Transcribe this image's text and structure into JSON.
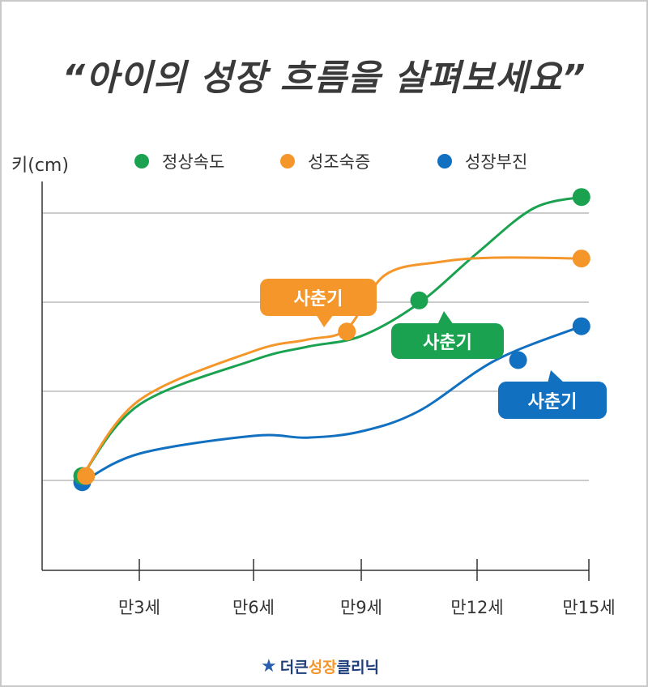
{
  "title": "“아이의 성장 흐름을 살펴보세요”",
  "chart_data": {
    "type": "line",
    "ylabel": "키(cm)",
    "xlabel": "",
    "categories": [
      "만3세",
      "만6세",
      "만9세",
      "만12세",
      "만15세"
    ],
    "legend_position": "top",
    "grid": true,
    "series": [
      {
        "name": "정상속도",
        "color": "#1aa250",
        "values": [
          {
            "age": 1.5,
            "height": 0.05
          },
          {
            "age": 3,
            "height": 0.85
          },
          {
            "age": 6,
            "height": 1.35
          },
          {
            "age": 7.5,
            "height": 1.5
          },
          {
            "age": 9,
            "height": 1.62
          },
          {
            "age": 10.5,
            "height": 1.99
          },
          {
            "age": 12,
            "height": 2.55
          },
          {
            "age": 13.5,
            "height": 3.05
          },
          {
            "age": 14.8,
            "height": 3.18
          }
        ],
        "markers": [
          {
            "age": 1.5,
            "height": 0.05
          },
          {
            "age": 10.5,
            "height": 2.02
          },
          {
            "age": 14.8,
            "height": 3.18
          }
        ],
        "callout": {
          "label": "사춘기"
        }
      },
      {
        "name": "성조숙증",
        "color": "#f5962a",
        "values": [
          {
            "age": 1.5,
            "height": 0.05
          },
          {
            "age": 3,
            "height": 0.9
          },
          {
            "age": 6,
            "height": 1.45
          },
          {
            "age": 7.5,
            "height": 1.58
          },
          {
            "age": 8.6,
            "height": 1.7
          },
          {
            "age": 9.6,
            "height": 2.3
          },
          {
            "age": 11,
            "height": 2.45
          },
          {
            "age": 12.5,
            "height": 2.5
          },
          {
            "age": 14.8,
            "height": 2.49
          }
        ],
        "markers": [
          {
            "age": 1.6,
            "height": 0.05
          },
          {
            "age": 8.6,
            "height": 1.67
          },
          {
            "age": 14.8,
            "height": 2.49
          }
        ],
        "callout": {
          "label": "사춘기"
        }
      },
      {
        "name": "성장부진",
        "color": "#1270c0",
        "values": [
          {
            "age": 1.5,
            "height": -0.02
          },
          {
            "age": 3,
            "height": 0.3
          },
          {
            "age": 6,
            "height": 0.5
          },
          {
            "age": 7.5,
            "height": 0.48
          },
          {
            "age": 9,
            "height": 0.55
          },
          {
            "age": 10.5,
            "height": 0.78
          },
          {
            "age": 12.5,
            "height": 1.35
          },
          {
            "age": 14.8,
            "height": 1.73
          }
        ],
        "markers": [
          {
            "age": 1.5,
            "height": -0.02
          },
          {
            "age": 13.1,
            "height": 1.35
          },
          {
            "age": 14.8,
            "height": 1.73
          }
        ],
        "callout": {
          "label": "사춘기"
        }
      }
    ]
  },
  "logo": {
    "part1": "더큰",
    "part2": "성장",
    "part3": "클리닉"
  }
}
